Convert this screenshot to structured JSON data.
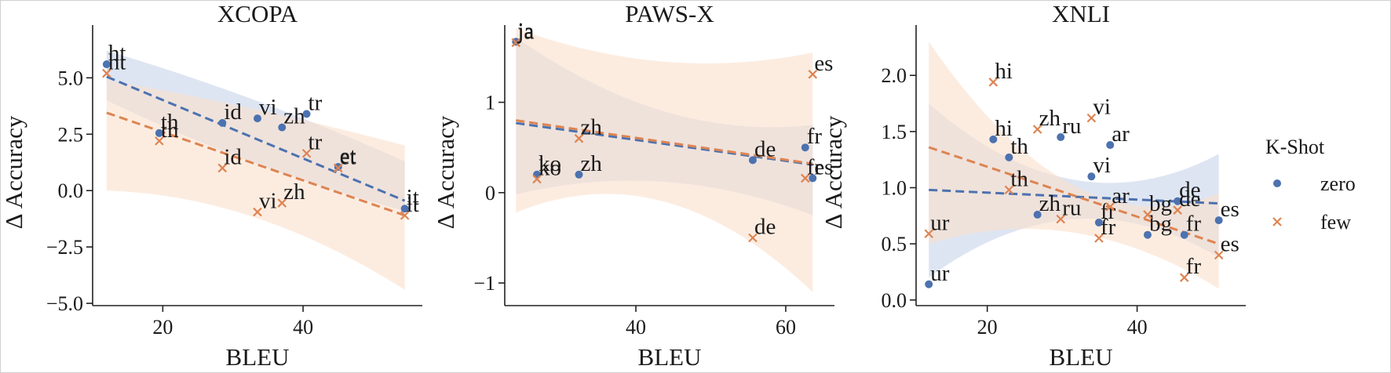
{
  "colors": {
    "zero": "#4c72b0",
    "few": "#dd8452",
    "zero_band": "#c8d3ea",
    "few_band": "#fadfcc"
  },
  "legend": {
    "title": "K-Shot",
    "placement": "right",
    "entries": [
      {
        "key": "zero",
        "label": "zero",
        "marker": "dot"
      },
      {
        "key": "few",
        "label": "few",
        "marker": "x"
      }
    ]
  },
  "chart_data": [
    {
      "type": "scatter",
      "title": "XCOPA",
      "xlabel": "BLEU",
      "ylabel": "Δ Accuracy",
      "xlim": [
        10,
        57
      ],
      "ylim": [
        -5.1,
        7.2
      ],
      "xticks": [
        20,
        40
      ],
      "yticks": [
        -5.0,
        -2.5,
        0.0,
        2.5,
        5.0
      ],
      "ytick_labels": [
        "−5.0",
        "−2.5",
        "0.0",
        "2.5",
        "5.0"
      ],
      "series": [
        {
          "name": "zero",
          "points": [
            {
              "label": "ht",
              "x": 12,
              "y": 5.6
            },
            {
              "label": "th",
              "x": 19.5,
              "y": 2.55
            },
            {
              "label": "id",
              "x": 28.5,
              "y": 3.0
            },
            {
              "label": "vi",
              "x": 33.5,
              "y": 3.2
            },
            {
              "label": "zh",
              "x": 37,
              "y": 2.8
            },
            {
              "label": "tr",
              "x": 40.5,
              "y": 3.4
            },
            {
              "label": "et",
              "x": 45,
              "y": 1.05
            },
            {
              "label": "it",
              "x": 54.5,
              "y": -0.8
            }
          ],
          "fit": {
            "x0": 12,
            "y0": 5.05,
            "x1": 54.5,
            "y1": -0.45
          },
          "band": {
            "lower": [
              4.0,
              1.2,
              -0.9
            ],
            "upper": [
              6.2,
              4.0,
              1.3
            ]
          }
        },
        {
          "name": "few",
          "points": [
            {
              "label": "ht",
              "x": 12,
              "y": 5.2
            },
            {
              "label": "th",
              "x": 19.5,
              "y": 2.2
            },
            {
              "label": "id",
              "x": 28.5,
              "y": 1.0
            },
            {
              "label": "vi",
              "x": 33.5,
              "y": -0.95
            },
            {
              "label": "zh",
              "x": 37,
              "y": -0.55
            },
            {
              "label": "tr",
              "x": 40.5,
              "y": 1.65
            },
            {
              "label": "et",
              "x": 45,
              "y": 1.0
            },
            {
              "label": "it",
              "x": 54.5,
              "y": -1.1
            }
          ],
          "fit": {
            "x0": 12,
            "y0": 3.45,
            "x1": 54.5,
            "y1": -1.1
          },
          "band": {
            "lower": [
              0.0,
              -1.2,
              -4.4
            ],
            "upper": [
              4.9,
              3.6,
              2.0
            ]
          }
        }
      ]
    },
    {
      "type": "scatter",
      "title": "PAWS-X",
      "xlabel": "BLEU",
      "ylabel": "Δ Accuracy",
      "xlim": [
        22.5,
        66.5
      ],
      "ylim": [
        -1.25,
        1.82
      ],
      "xticks": [
        40,
        60
      ],
      "yticks": [
        -1,
        0,
        1
      ],
      "ytick_labels": [
        "−1",
        "0",
        "1"
      ],
      "series": [
        {
          "name": "zero",
          "points": [
            {
              "label": "ja",
              "x": 24,
              "y": 1.67
            },
            {
              "label": "ko",
              "x": 26.8,
              "y": 0.2
            },
            {
              "label": "zh",
              "x": 32.4,
              "y": 0.2
            },
            {
              "label": "de",
              "x": 55.6,
              "y": 0.36
            },
            {
              "label": "fr",
              "x": 62.6,
              "y": 0.5
            },
            {
              "label": "es",
              "x": 63.6,
              "y": 0.16
            }
          ],
          "fit": {
            "x0": 24,
            "y0": 0.77,
            "x1": 63.6,
            "y1": 0.31
          },
          "band": {
            "lower": [
              -0.02,
              0.12,
              -0.25
            ],
            "upper": [
              1.72,
              0.9,
              0.75
            ]
          }
        },
        {
          "name": "few",
          "points": [
            {
              "label": "ja",
              "x": 24,
              "y": 1.66
            },
            {
              "label": "ko",
              "x": 26.8,
              "y": 0.15
            },
            {
              "label": "zh",
              "x": 32.4,
              "y": 0.6
            },
            {
              "label": "de",
              "x": 55.6,
              "y": -0.5
            },
            {
              "label": "fr",
              "x": 62.6,
              "y": 0.16
            },
            {
              "label": "es",
              "x": 63.6,
              "y": 1.31
            }
          ],
          "fit": {
            "x0": 24,
            "y0": 0.8,
            "x1": 63.6,
            "y1": 0.32
          },
          "band": {
            "lower": [
              -0.22,
              -0.1,
              -1.1
            ],
            "upper": [
              1.82,
              1.45,
              1.55
            ]
          }
        }
      ]
    },
    {
      "type": "scatter",
      "title": "XNLI",
      "xlabel": "BLEU",
      "ylabel": "Δ Accuracy",
      "xlim": [
        10.5,
        54.5
      ],
      "ylim": [
        -0.05,
        2.42
      ],
      "xticks": [
        20,
        40
      ],
      "yticks": [
        0.0,
        0.5,
        1.0,
        1.5,
        2.0
      ],
      "ytick_labels": [
        "0.0",
        "0.5",
        "1.0",
        "1.5",
        "2.0"
      ],
      "series": [
        {
          "name": "zero",
          "points": [
            {
              "label": "ur",
              "x": 12.2,
              "y": 0.14
            },
            {
              "label": "hi",
              "x": 20.8,
              "y": 1.43
            },
            {
              "label": "th",
              "x": 22.9,
              "y": 1.27
            },
            {
              "label": "zh",
              "x": 26.7,
              "y": 0.76
            },
            {
              "label": "ru",
              "x": 29.8,
              "y": 1.45
            },
            {
              "label": "vi",
              "x": 33.9,
              "y": 1.1
            },
            {
              "label": "fr",
              "x": 34.9,
              "y": 0.69
            },
            {
              "label": "ar",
              "x": 36.4,
              "y": 1.38
            },
            {
              "label": "bg",
              "x": 41.4,
              "y": 0.58
            },
            {
              "label": "de",
              "x": 45.4,
              "y": 0.88
            },
            {
              "label": "fr",
              "x": 46.3,
              "y": 0.58
            },
            {
              "label": "es",
              "x": 50.9,
              "y": 0.71
            }
          ],
          "fit": {
            "x0": 12.2,
            "y0": 0.98,
            "x1": 50.9,
            "y1": 0.86
          },
          "band": {
            "lower": [
              0.2,
              0.72,
              0.38
            ],
            "upper": [
              1.75,
              1.07,
              1.3
            ]
          }
        },
        {
          "name": "few",
          "points": [
            {
              "label": "ur",
              "x": 12.2,
              "y": 0.59
            },
            {
              "label": "hi",
              "x": 20.8,
              "y": 1.94
            },
            {
              "label": "th",
              "x": 22.9,
              "y": 0.98
            },
            {
              "label": "zh",
              "x": 26.7,
              "y": 1.52
            },
            {
              "label": "ru",
              "x": 29.8,
              "y": 0.72
            },
            {
              "label": "vi",
              "x": 33.9,
              "y": 1.62
            },
            {
              "label": "fr",
              "x": 34.9,
              "y": 0.55
            },
            {
              "label": "ar",
              "x": 36.4,
              "y": 0.83
            },
            {
              "label": "bg",
              "x": 41.4,
              "y": 0.76
            },
            {
              "label": "de",
              "x": 45.4,
              "y": 0.8
            },
            {
              "label": "fr",
              "x": 46.3,
              "y": 0.2
            },
            {
              "label": "es",
              "x": 50.9,
              "y": 0.4
            }
          ],
          "fit": {
            "x0": 12.2,
            "y0": 1.36,
            "x1": 50.9,
            "y1": 0.5
          },
          "band": {
            "lower": [
              0.5,
              0.6,
              0.1
            ],
            "upper": [
              2.3,
              1.02,
              0.95
            ]
          }
        }
      ]
    }
  ]
}
